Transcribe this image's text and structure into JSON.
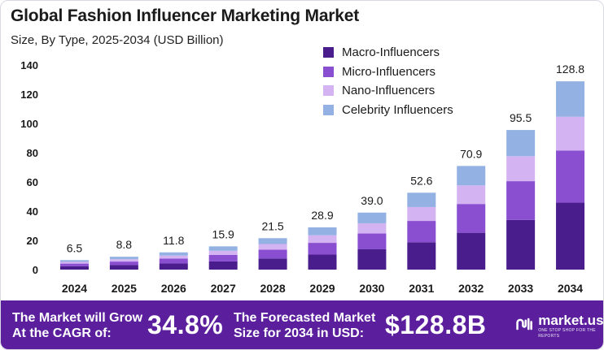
{
  "header": {
    "title": "Global Fashion Influencer Marketing Market",
    "subtitle": "Size, By Type, 2025-2034 (USD Billion)"
  },
  "colors": {
    "macro": "#4a1d8c",
    "micro": "#8a4fd0",
    "nano": "#d4b3f2",
    "celebrity": "#93b1e2",
    "footer": "#5b1f9e"
  },
  "chart_data": {
    "type": "bar",
    "stacked": true,
    "categories": [
      "2024",
      "2025",
      "2026",
      "2027",
      "2028",
      "2029",
      "2030",
      "2031",
      "2032",
      "2033",
      "2034"
    ],
    "totals": [
      "6.5",
      "8.8",
      "11.8",
      "15.9",
      "21.5",
      "28.9",
      "39.0",
      "52.6",
      "70.9",
      "95.5",
      "128.8"
    ],
    "series": [
      {
        "name": "Macro-Influencers",
        "color": "#4a1d8c",
        "values": [
          2.3,
          3.1,
          4.2,
          5.6,
          7.6,
          10.3,
          13.9,
          18.7,
          25.2,
          34.0,
          45.8
        ]
      },
      {
        "name": "Micro-Influencers",
        "color": "#8a4fd0",
        "values": [
          1.8,
          2.4,
          3.3,
          4.4,
          6.0,
          8.0,
          10.8,
          14.6,
          19.7,
          26.5,
          35.7
        ]
      },
      {
        "name": "Nano-Influencers",
        "color": "#d4b3f2",
        "values": [
          1.2,
          1.6,
          2.1,
          2.9,
          3.9,
          5.2,
          7.0,
          9.5,
          12.7,
          17.1,
          23.1
        ]
      },
      {
        "name": "Celebrity Influencers",
        "color": "#93b1e2",
        "values": [
          1.2,
          1.7,
          2.2,
          3.0,
          4.0,
          5.4,
          7.3,
          9.8,
          13.3,
          17.9,
          24.2
        ]
      }
    ],
    "yticks": [
      "0",
      "20",
      "40",
      "60",
      "80",
      "100",
      "120",
      "140"
    ],
    "ylim": [
      0,
      140
    ],
    "grid": false,
    "legend": "top-right"
  },
  "footer": {
    "cagr_label_1": "The Market will Grow",
    "cagr_label_2": "At the CAGR of:",
    "cagr_value": "34.8%",
    "forecast_label_1": "The Forecasted Market",
    "forecast_label_2": "Size for 2034 in USD:",
    "forecast_value": "$128.8B",
    "brand_name": "market.us",
    "brand_tagline": "ONE STOP SHOP FOR THE REPORTS"
  }
}
